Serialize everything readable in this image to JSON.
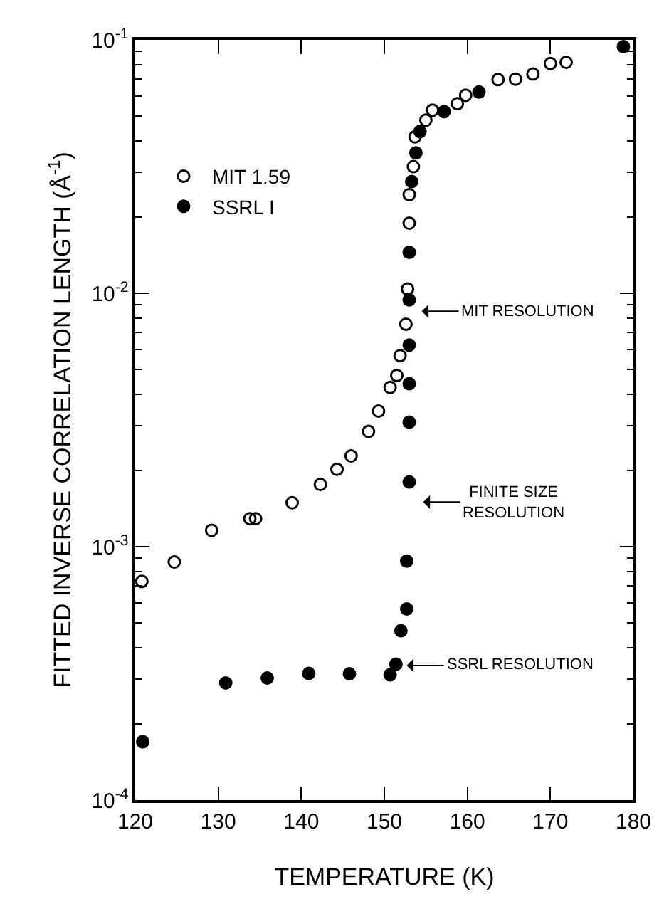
{
  "chart_data": {
    "type": "scatter",
    "xlabel": "TEMPERATURE (K)",
    "ylabel": "FITTED INVERSE CORRELATION LENGTH (Å$^{-1}$)",
    "log": "y",
    "xlim": [
      120,
      180
    ],
    "xticks": [
      120,
      130,
      140,
      150,
      160,
      170,
      180
    ],
    "ylim": [
      0.0001,
      0.1
    ],
    "yticks": [
      {
        "value": 0.0001,
        "label": "10$^{-4}$"
      },
      {
        "value": 0.0002,
        "label": null
      },
      {
        "value": 0.0003,
        "label": null
      },
      {
        "value": 0.0004,
        "label": null
      },
      {
        "value": 0.0005,
        "label": null
      },
      {
        "value": 0.0006,
        "label": null
      },
      {
        "value": 0.0007,
        "label": null
      },
      {
        "value": 0.0008,
        "label": null
      },
      {
        "value": 0.0009,
        "label": null
      },
      {
        "value": 0.001,
        "label": "10$^{-3}$"
      },
      {
        "value": 0.002,
        "label": null
      },
      {
        "value": 0.003,
        "label": null
      },
      {
        "value": 0.004,
        "label": null
      },
      {
        "value": 0.005,
        "label": null
      },
      {
        "value": 0.006,
        "label": null
      },
      {
        "value": 0.007,
        "label": null
      },
      {
        "value": 0.008,
        "label": null
      },
      {
        "value": 0.009,
        "label": null
      },
      {
        "value": 0.01,
        "label": "10$^{-2}$"
      },
      {
        "value": 0.02,
        "label": null
      },
      {
        "value": 0.03,
        "label": null
      },
      {
        "value": 0.04,
        "label": null
      },
      {
        "value": 0.05,
        "label": null
      },
      {
        "value": 0.06,
        "label": null
      },
      {
        "value": 0.07,
        "label": null
      },
      {
        "value": 0.08,
        "label": null
      },
      {
        "value": 0.09,
        "label": null
      },
      {
        "value": 0.1,
        "label": "10$^{-1}$"
      }
    ],
    "legend": "top left",
    "series": [
      {
        "name": "MIT 1.59",
        "color": "#000000",
        "marker": "circle-open",
        "x": [
          120.8,
          124.7,
          129.2,
          133.8,
          134.5,
          138.9,
          142.3,
          144.3,
          146.0,
          148.1,
          149.3,
          150.7,
          151.5,
          151.9,
          152.6,
          152.8,
          153.0,
          153.0,
          153.5,
          153.7,
          155.0,
          155.8,
          158.8,
          159.8,
          163.7,
          165.8,
          167.9,
          170.0,
          171.9
        ],
        "values": [
          0.00073,
          0.00087,
          0.00116,
          0.00129,
          0.00129,
          0.00149,
          0.00176,
          0.00202,
          0.00228,
          0.00285,
          0.00343,
          0.00425,
          0.00474,
          0.00567,
          0.00755,
          0.0104,
          0.0189,
          0.0245,
          0.0316,
          0.0414,
          0.0482,
          0.0528,
          0.056,
          0.0605,
          0.0697,
          0.07,
          0.0733,
          0.0807,
          0.0815
        ]
      },
      {
        "name": "SSRL I",
        "color": "#000000",
        "marker": "circle",
        "x": [
          120.9,
          130.9,
          135.9,
          140.9,
          145.8,
          150.7,
          151.4,
          152.0,
          152.7,
          152.7,
          153.0,
          153.0,
          153.0,
          153.0,
          153.0,
          153.0,
          153.3,
          153.8,
          154.3,
          157.2,
          161.4,
          178.8
        ],
        "values": [
          0.00017,
          0.00029,
          0.000303,
          0.000316,
          0.000315,
          0.000312,
          0.000344,
          0.000466,
          0.000568,
          0.000877,
          0.0018,
          0.0031,
          0.0044,
          0.00625,
          0.00942,
          0.0145,
          0.0276,
          0.0358,
          0.0435,
          0.0521,
          0.0623,
          0.094
        ]
      }
    ],
    "annotations": [
      "MIT RESOLUTION",
      "FINITE SIZE\nRESOLUTION",
      "SSRL RESOLUTION"
    ]
  }
}
